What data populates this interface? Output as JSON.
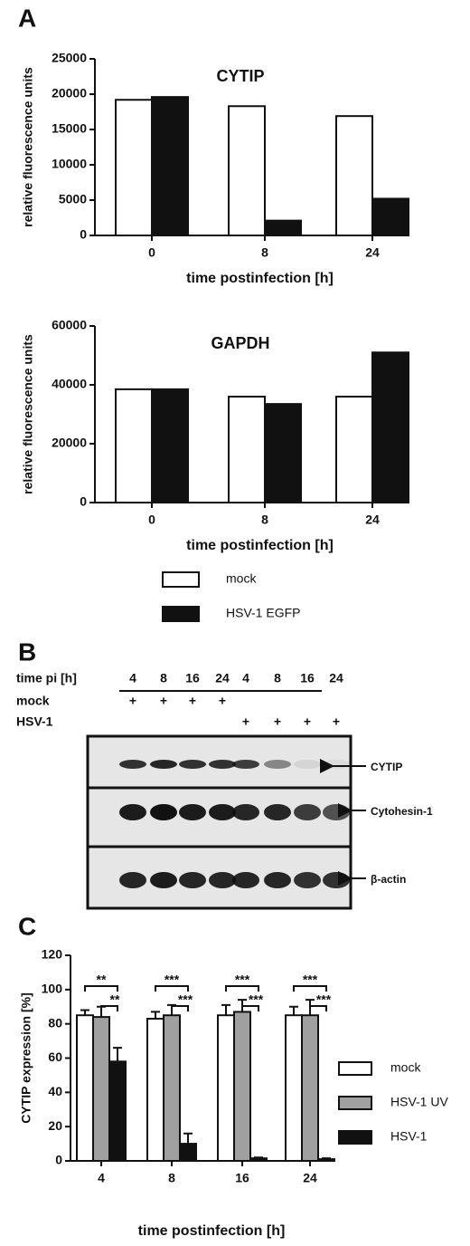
{
  "panel_labels": [
    "A",
    "B",
    "C"
  ],
  "chart_data": [
    {
      "type": "bar",
      "title": "CYTIP",
      "y_label": "relative fluorescence units",
      "x_label": "time postinfection [h]",
      "categories": [
        "0",
        "8",
        "24"
      ],
      "series": [
        {
          "color": "#ffffff",
          "values": [
            19200,
            18300,
            16900
          ]
        },
        {
          "color": "#111111",
          "values": [
            19600,
            2100,
            5200
          ]
        }
      ],
      "ylim": [
        0,
        25000
      ],
      "yticks": [
        0,
        5000,
        10000,
        15000,
        20000,
        25000
      ]
    },
    {
      "type": "bar",
      "title": "GAPDH",
      "y_label": "relative fluorescence units",
      "x_label": "time postinfection [h]",
      "categories": [
        "0",
        "8",
        "24"
      ],
      "series": [
        {
          "name": "mock",
          "color": "#ffffff",
          "values": [
            38500,
            36000,
            36000
          ]
        },
        {
          "name": "HSV-1 EGFP",
          "color": "#111111",
          "values": [
            38500,
            33500,
            51000
          ]
        }
      ],
      "ylim": [
        0,
        60000
      ],
      "yticks": [
        0,
        20000,
        40000,
        60000
      ]
    },
    {
      "type": "bar",
      "y_label": "CYTIP expression [%]",
      "x_label": "time postinfection [h]",
      "categories": [
        "4",
        "8",
        "16",
        "24"
      ],
      "series": [
        {
          "name": "mock",
          "color": "#ffffff",
          "values": [
            85,
            83,
            85,
            85
          ],
          "errors": [
            3,
            4,
            6,
            5
          ]
        },
        {
          "name": "HSV-1 UV",
          "color": "#a0a0a0",
          "values": [
            84,
            85,
            87,
            85
          ],
          "errors": [
            6,
            6,
            7,
            9
          ]
        },
        {
          "name": "HSV-1",
          "color": "#111111",
          "values": [
            58,
            10,
            1.5,
            1
          ],
          "errors": [
            8,
            6,
            0.5,
            0.5
          ]
        }
      ],
      "significance": [
        [
          "**",
          "**"
        ],
        [
          "***",
          "***"
        ],
        [
          "***",
          "***"
        ],
        [
          "***",
          "***"
        ]
      ],
      "ylim": [
        0,
        120
      ],
      "yticks": [
        0,
        20,
        40,
        60,
        80,
        100,
        120
      ]
    }
  ],
  "blot": {
    "lanes": [
      "4",
      "8",
      "16",
      "24",
      "4",
      "8",
      "16",
      "24"
    ],
    "row_labels": [
      "time pi [h]",
      "mock",
      "HSV-1"
    ],
    "mock": [
      "+",
      "+",
      "+",
      "+",
      null,
      null,
      null,
      null
    ],
    "hsv": [
      null,
      null,
      null,
      null,
      "+",
      "+",
      "+",
      "+"
    ],
    "bands": [
      "CYTIP",
      "Cytohesin-1",
      "β-actin"
    ]
  }
}
